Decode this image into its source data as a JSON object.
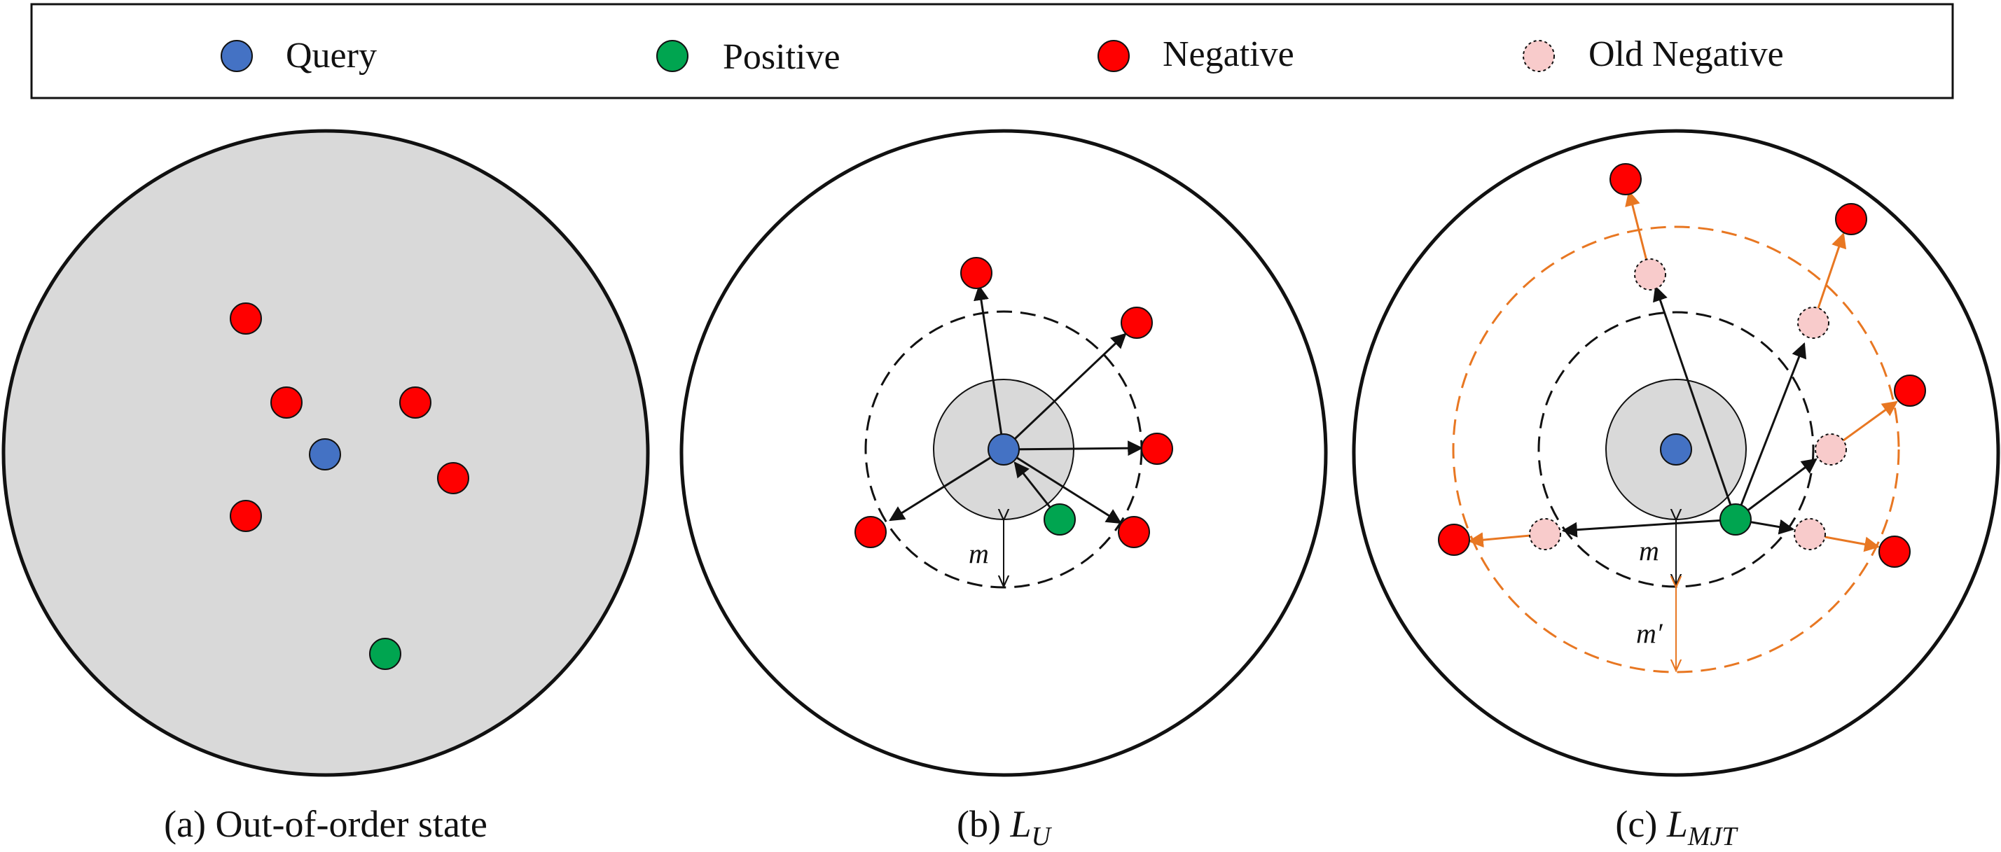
{
  "colors": {
    "query": "#4472c4",
    "positive": "#00a550",
    "negative": "#ff0000",
    "old_negative": "#f8cbcb",
    "space_fill": "#d9d9d9",
    "margin_orange": "#e87722",
    "ink": "#111111"
  },
  "legend": {
    "items": [
      {
        "label": "Query",
        "icon": "blue-dot"
      },
      {
        "label": "Positive",
        "icon": "green-dot"
      },
      {
        "label": "Negative",
        "icon": "red-dot"
      },
      {
        "label": "Old Negative",
        "icon": "pink-dashed-dot"
      }
    ]
  },
  "panels": [
    {
      "id": "a",
      "caption": "(a) Out-of-order state"
    },
    {
      "id": "b",
      "caption_prefix": "(b) ",
      "caption_main": "L",
      "caption_sub": "U",
      "margin_label": "m"
    },
    {
      "id": "c",
      "caption_prefix": "(c) ",
      "caption_main": "L",
      "caption_sub": "MJT",
      "margin_label": "m",
      "outer_margin_label": "m′"
    }
  ]
}
